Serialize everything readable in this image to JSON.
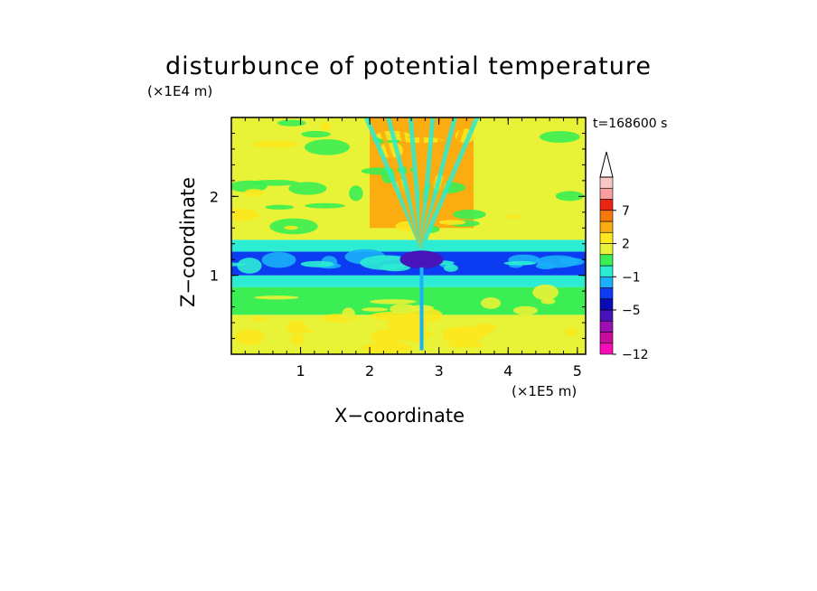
{
  "chart_data": {
    "type": "heatmap",
    "title": "disturbunce of potential temperature",
    "xlabel": "X−coordinate",
    "ylabel": "Z−coordinate",
    "x_unit_label": "(×1E5 m)",
    "y_unit_label": "(×1E4 m)",
    "time_label": "t=168600 s",
    "xlim": [
      0,
      5.12
    ],
    "ylim": [
      0,
      3.0
    ],
    "xticks": [
      1,
      2,
      3,
      4,
      5
    ],
    "xtick_labels": [
      "1",
      "2",
      "3",
      "4",
      "5"
    ],
    "yticks": [
      1,
      2
    ],
    "ytick_labels": [
      "1",
      "2"
    ],
    "colorbar": {
      "levels": [
        -12,
        -10,
        -8,
        -6,
        -5,
        -4,
        -3,
        -1,
        0,
        1,
        2,
        3,
        5,
        7,
        9,
        11
      ],
      "colors": [
        "#f80cb8",
        "#c80d9c",
        "#9b0fb4",
        "#4614b8",
        "#0a0ab4",
        "#0c3cf2",
        "#1ab0fa",
        "#2cecd3",
        "#3bee53",
        "#e8f236",
        "#fce81c",
        "#fbac10",
        "#f4790c",
        "#ec2414",
        "#f8a0a0",
        "#f8c8c8"
      ],
      "tick_labels": [
        {
          "value": 7,
          "label": "7"
        },
        {
          "value": 2,
          "label": "2"
        },
        {
          "value": -1,
          "label": "−1"
        },
        {
          "value": -5,
          "label": "−5"
        },
        {
          "value": -12,
          "label": "−12"
        }
      ],
      "extend": "max"
    },
    "field_description": [
      {
        "z_range": [
          0.0,
          0.5
        ],
        "x_range": [
          0,
          5.12
        ],
        "dominant_level": 1
      },
      {
        "z_range": [
          0.5,
          0.85
        ],
        "x_range": [
          0,
          5.12
        ],
        "dominant_level": 0
      },
      {
        "z_range": [
          0.85,
          1.0
        ],
        "x_range": [
          0,
          5.12
        ],
        "dominant_level": -1
      },
      {
        "z_range": [
          1.0,
          1.3
        ],
        "x_range": [
          0,
          5.12
        ],
        "dominant_level": -4
      },
      {
        "z_range": [
          1.3,
          1.45
        ],
        "x_range": [
          0,
          5.12
        ],
        "dominant_level": -1
      },
      {
        "z_range": [
          1.45,
          3.0
        ],
        "x_range": [
          0,
          5.12
        ],
        "dominant_level": 1
      },
      {
        "z_range": [
          1.6,
          3.0
        ],
        "x_range": [
          2.0,
          3.5
        ],
        "dominant_level": 3,
        "note": "radiating wave beams"
      }
    ]
  }
}
